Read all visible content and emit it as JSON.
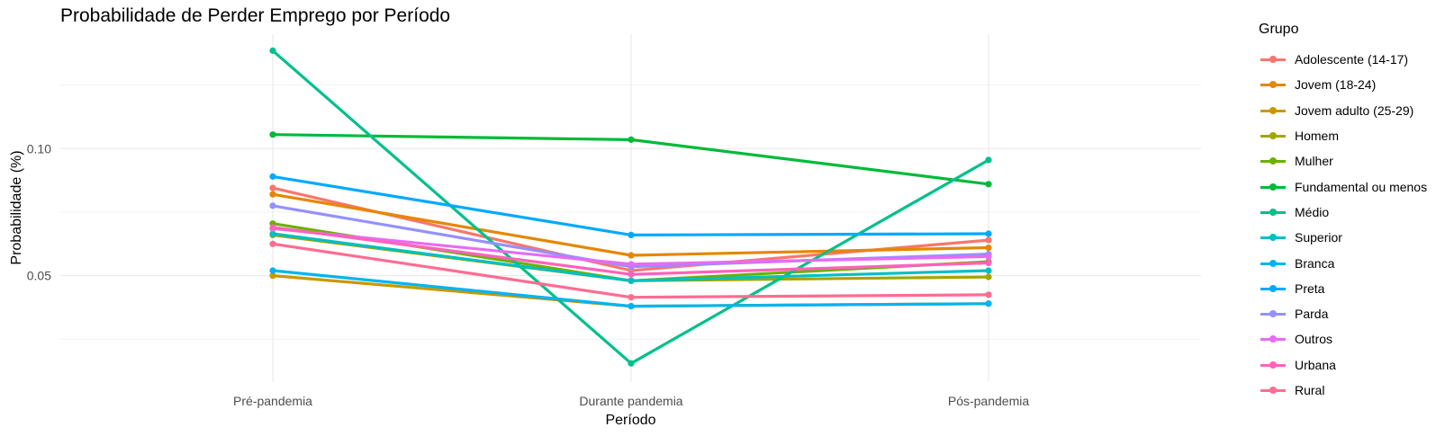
{
  "chart_data": {
    "type": "line",
    "title": "Probabilidade de Perder Emprego por Período",
    "xlabel": "Período",
    "ylabel": "Probabilidade (%)",
    "categories": [
      "Pré-pandemia",
      "Durante pandemia",
      "Pós-pandemia"
    ],
    "yticks": [
      "0.05",
      "0.10"
    ],
    "ylim": [
      0.0085,
      0.145
    ],
    "grid": true,
    "legend": {
      "title": "Grupo",
      "placement": "right"
    },
    "series": [
      {
        "name": "Adolescente (14-17)",
        "color": "#F8766D",
        "values": [
          0.0845,
          0.052,
          0.064
        ]
      },
      {
        "name": "Jovem (18-24)",
        "color": "#E58700",
        "values": [
          0.082,
          0.058,
          0.061
        ]
      },
      {
        "name": "Jovem adulto (25-29)",
        "color": "#C99800",
        "values": [
          0.05,
          0.038,
          0.039
        ]
      },
      {
        "name": "Homem",
        "color": "#A3A500",
        "values": [
          0.066,
          0.048,
          0.0495
        ]
      },
      {
        "name": "Mulher",
        "color": "#6BB100",
        "values": [
          0.0705,
          0.048,
          0.0555
        ]
      },
      {
        "name": "Fundamental ou menos",
        "color": "#00BA38",
        "values": [
          0.1055,
          0.1035,
          0.086
        ]
      },
      {
        "name": "Médio",
        "color": "#00C08B",
        "values": [
          0.1385,
          0.0155,
          0.0955
        ]
      },
      {
        "name": "Superior",
        "color": "#00BFC4",
        "values": [
          0.0665,
          0.048,
          0.052
        ]
      },
      {
        "name": "Branca",
        "color": "#00B4F0",
        "values": [
          0.052,
          0.038,
          0.039
        ]
      },
      {
        "name": "Preta",
        "color": "#00A9FF",
        "values": [
          0.089,
          0.066,
          0.0665
        ]
      },
      {
        "name": "Parda",
        "color": "#9590FF",
        "values": [
          0.0775,
          0.0535,
          0.0585
        ]
      },
      {
        "name": "Outros",
        "color": "#E76BF3",
        "values": [
          0.0685,
          0.0545,
          0.0575
        ]
      },
      {
        "name": "Urbana",
        "color": "#FF62BC",
        "values": [
          0.069,
          0.0505,
          0.055
        ]
      },
      {
        "name": "Rural",
        "color": "#FF6C91",
        "values": [
          0.0625,
          0.0415,
          0.0425
        ]
      }
    ]
  }
}
